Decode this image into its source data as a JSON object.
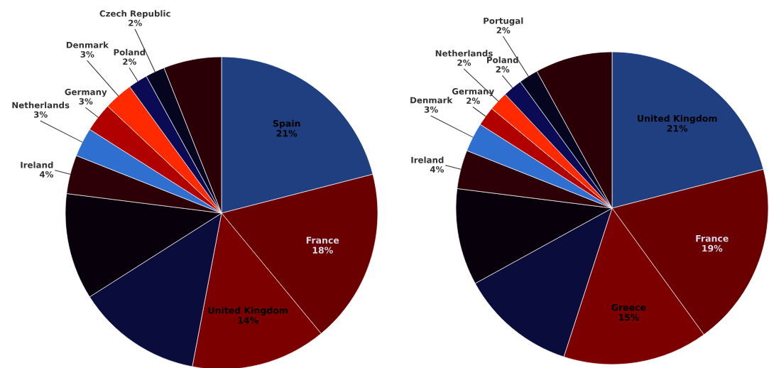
{
  "chart_data": [
    {
      "type": "pie",
      "categories": [
        "Spain",
        "France",
        "United Kingdom",
        null,
        null,
        "Ireland",
        "Netherlands",
        "Germany",
        "Denmark",
        "Poland",
        "Czech Republic",
        null
      ],
      "values": [
        21,
        18,
        14,
        13,
        11,
        4,
        3,
        3,
        3,
        2,
        2,
        6
      ],
      "value_labels": [
        "21%",
        "18%",
        "14%",
        null,
        null,
        "4%",
        "3%",
        "3%",
        "3%",
        "2%",
        "2%",
        null
      ],
      "colors": [
        "#1f3f80",
        "#6a0000",
        "#7c0000",
        "#0a0d3c",
        "#08000a",
        "#2c0006",
        "#2f6fcf",
        "#b00000",
        "#ff2a00",
        "#0b0b55",
        "#05051f",
        "#2a0006"
      ]
    },
    {
      "type": "pie",
      "categories": [
        "United Kingdom",
        "France",
        "Greece",
        null,
        null,
        "Ireland",
        "Denmark",
        "Germany",
        "Netherlands",
        "Poland",
        "Portugal",
        null
      ],
      "values": [
        21,
        19,
        15,
        12,
        10,
        4,
        3,
        2,
        2,
        2,
        2,
        8
      ],
      "value_labels": [
        "21%",
        "19%",
        "15%",
        null,
        null,
        "4%",
        "3%",
        "2%",
        "2%",
        "2%",
        "2%",
        null
      ],
      "colors": [
        "#1f3f80",
        "#6a0000",
        "#7c0000",
        "#0a0d3c",
        "#08000a",
        "#2c0006",
        "#2f6fcf",
        "#b00000",
        "#ff2a00",
        "#0b0b55",
        "#05051f",
        "#2a0006"
      ]
    }
  ]
}
